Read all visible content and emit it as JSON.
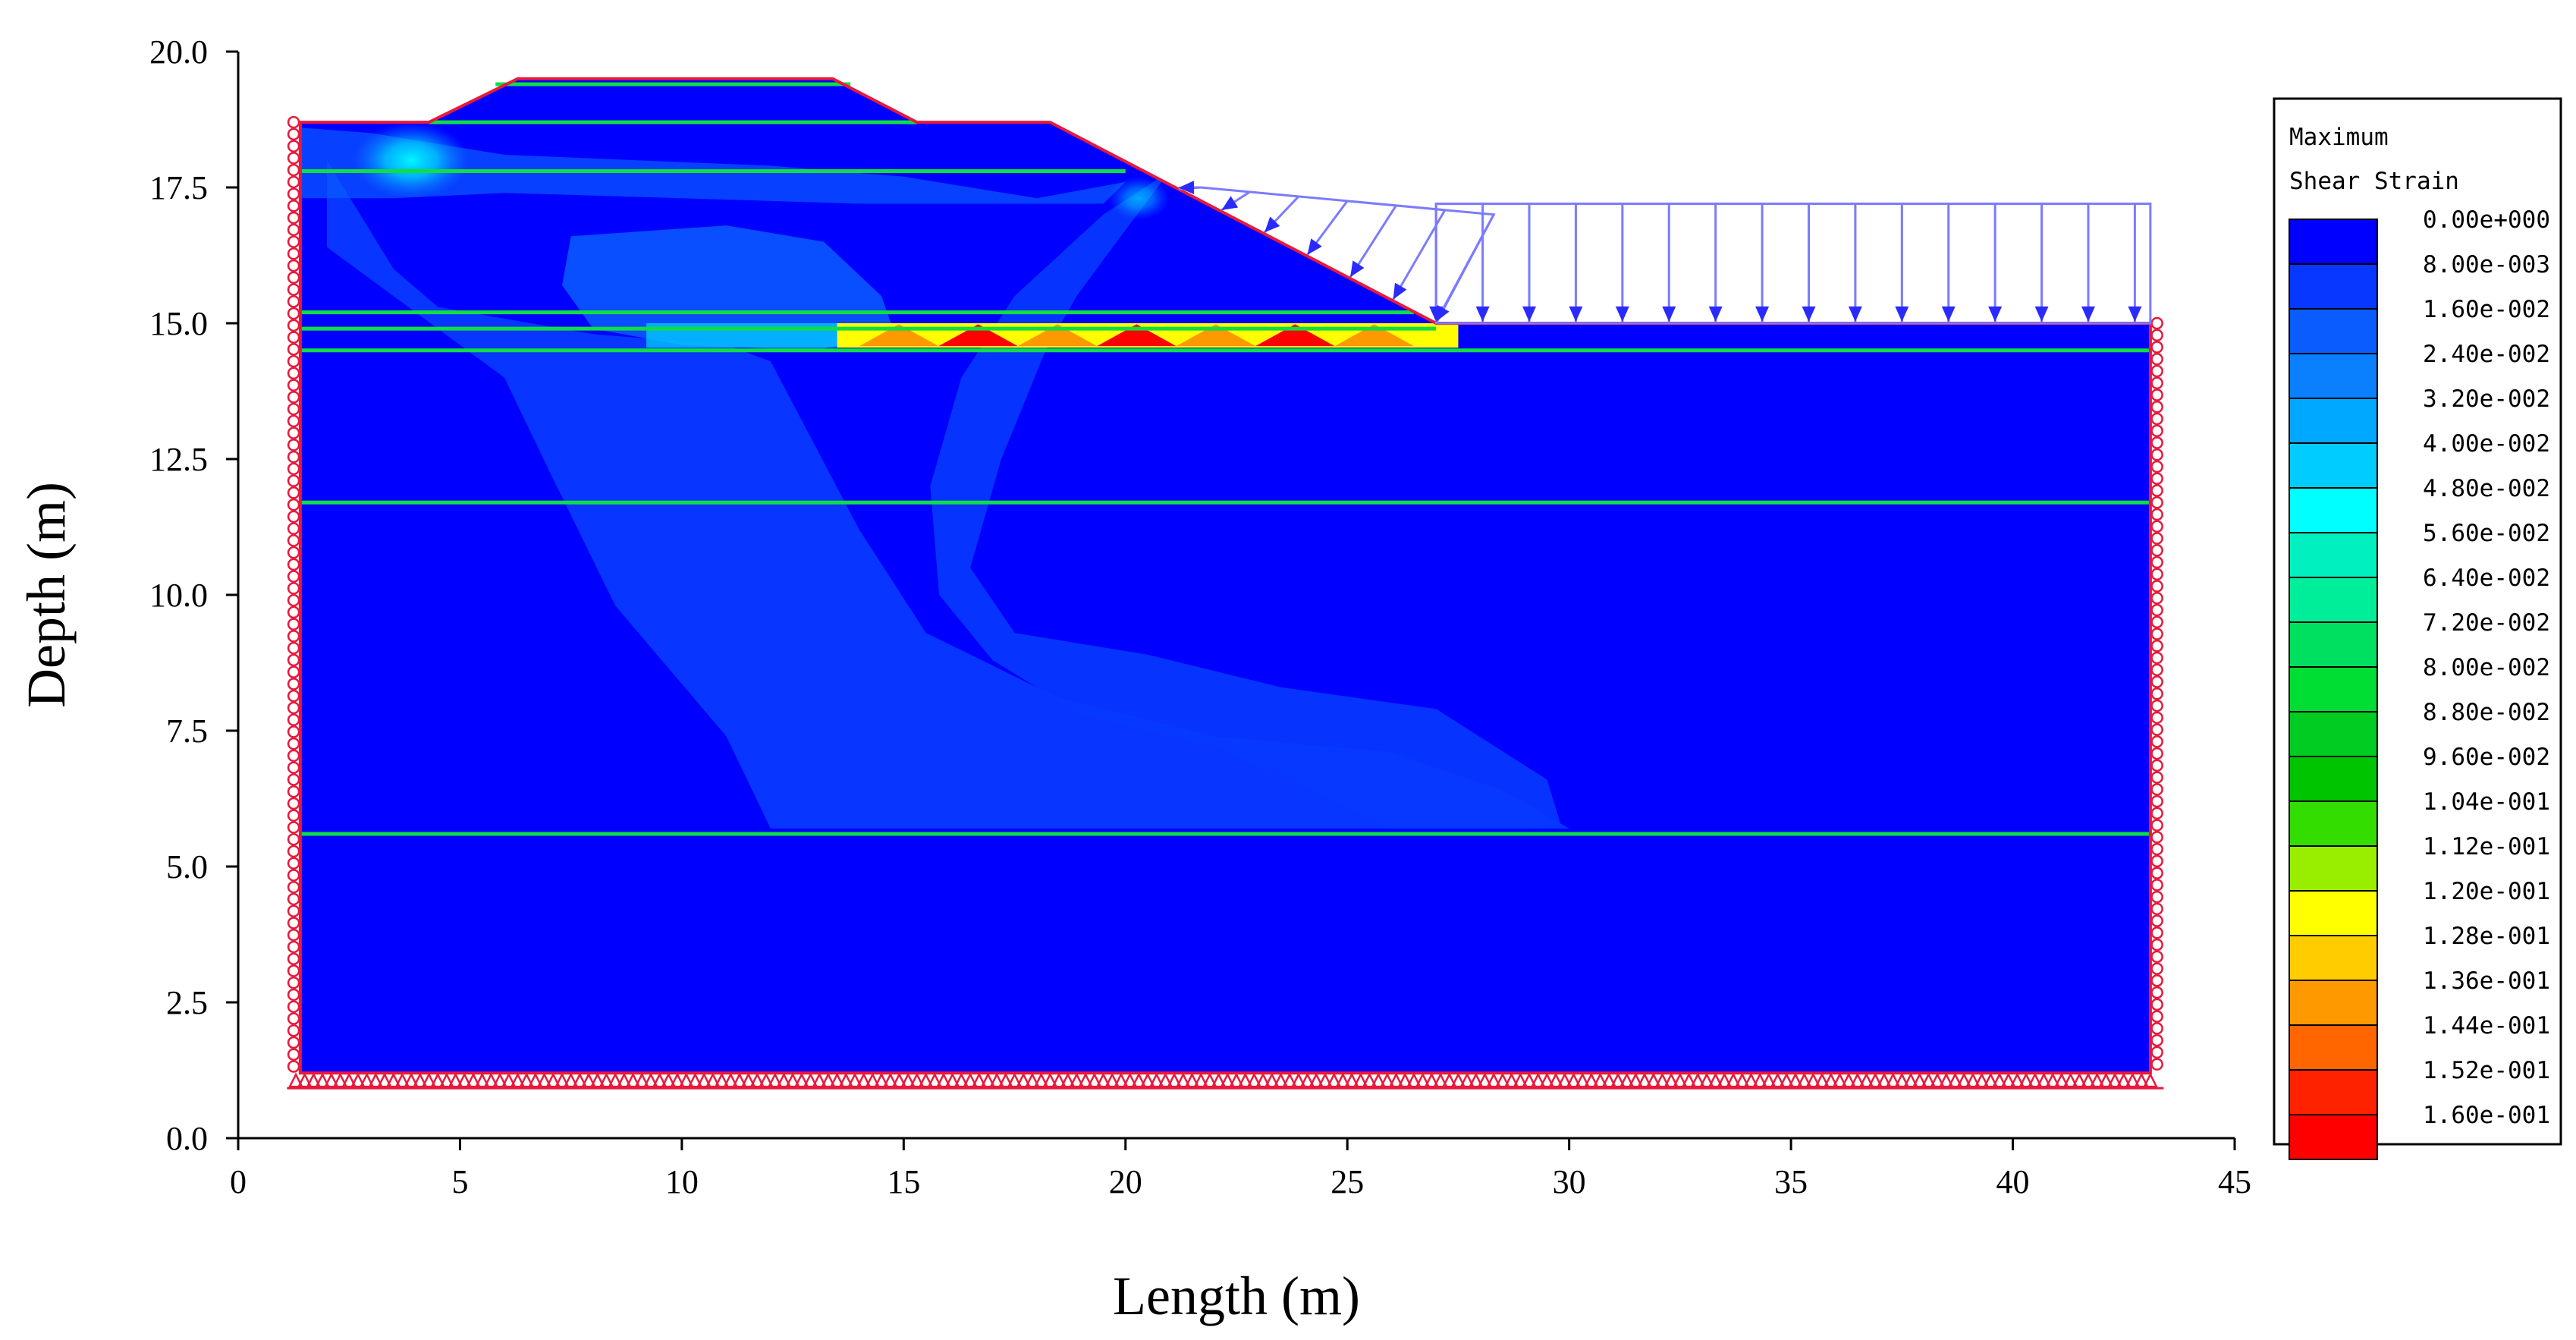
{
  "chart_data": {
    "type": "heatmap",
    "xlabel": "Length (m)",
    "ylabel": "Depth (m)",
    "xlim": [
      0,
      45
    ],
    "ylim": [
      0,
      20
    ],
    "xticks": [
      "0",
      "5",
      "10",
      "15",
      "20",
      "25",
      "30",
      "35",
      "40",
      "45"
    ],
    "yticks": [
      "0.0",
      "2.5",
      "5.0",
      "7.5",
      "10.0",
      "12.5",
      "15.0",
      "17.5",
      "20.0"
    ],
    "legend": {
      "title_lines": [
        "Maximum",
        "Shear Strain"
      ],
      "placement": "right",
      "levels": [
        {
          "label": "0.00e+000",
          "color": "#0000ff"
        },
        {
          "label": "8.00e-003",
          "color": "#0838ff"
        },
        {
          "label": "1.60e-002",
          "color": "#0a5cff"
        },
        {
          "label": "2.40e-002",
          "color": "#0a80ff"
        },
        {
          "label": "3.20e-002",
          "color": "#00a8ff"
        },
        {
          "label": "4.00e-002",
          "color": "#00ccff"
        },
        {
          "label": "4.80e-002",
          "color": "#00ffff"
        },
        {
          "label": "5.60e-002",
          "color": "#00f0c0"
        },
        {
          "label": "6.40e-002",
          "color": "#00ee99"
        },
        {
          "label": "7.20e-002",
          "color": "#00e060"
        },
        {
          "label": "8.00e-002",
          "color": "#00dd33"
        },
        {
          "label": "8.80e-002",
          "color": "#00cc22"
        },
        {
          "label": "9.60e-002",
          "color": "#00c400"
        },
        {
          "label": "1.04e-001",
          "color": "#33dd00"
        },
        {
          "label": "1.12e-001",
          "color": "#99ee00"
        },
        {
          "label": "1.20e-001",
          "color": "#ffff00"
        },
        {
          "label": "1.28e-001",
          "color": "#ffcc00"
        },
        {
          "label": "1.36e-001",
          "color": "#ff9900"
        },
        {
          "label": "1.44e-001",
          "color": "#ff6600"
        },
        {
          "label": "1.52e-001",
          "color": "#ff2200"
        },
        {
          "label": "1.60e-001",
          "color": "#ff0000"
        }
      ]
    },
    "model": {
      "profile": [
        [
          1.4,
          18.7
        ],
        [
          4.3,
          18.7
        ],
        [
          6.3,
          19.5
        ],
        [
          13.4,
          19.5
        ],
        [
          15.3,
          18.7
        ],
        [
          18.3,
          18.7
        ],
        [
          27.0,
          15.0
        ],
        [
          43.1,
          15.0
        ],
        [
          43.1,
          1.2
        ],
        [
          1.4,
          1.2
        ]
      ],
      "layer_boundaries": [
        {
          "x1": 5.8,
          "x2": 13.8,
          "y": 19.4
        },
        {
          "x1": 4.3,
          "x2": 15.3,
          "y": 18.7
        },
        {
          "x1": 1.4,
          "x2": 20.0,
          "y": 17.8
        },
        {
          "x1": 1.4,
          "x2": 26.5,
          "y": 15.2
        },
        {
          "x1": 1.4,
          "x2": 27.0,
          "y": 14.9
        },
        {
          "x1": 1.4,
          "x2": 43.1,
          "y": 14.5
        },
        {
          "x1": 1.4,
          "x2": 43.1,
          "y": 11.7
        },
        {
          "x1": 1.4,
          "x2": 43.1,
          "y": 5.6
        }
      ],
      "shear_band": {
        "x1": 13.5,
        "x2": 27.5,
        "y": 14.6,
        "peak_strain": 0.16
      },
      "slope_load": {
        "x1": 21.2,
        "x2": 27.0
      },
      "surface_load": {
        "x1": 27.0,
        "x2": 43.1,
        "y": 15.0,
        "magnitude_height": 2.2
      }
    }
  }
}
